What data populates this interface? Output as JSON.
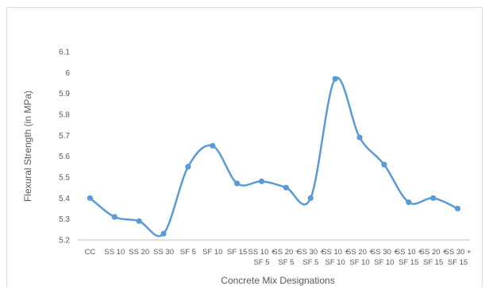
{
  "chart_data": {
    "type": "line",
    "smooth": true,
    "xlabel": "Concrete Mix Designations",
    "ylabel": "Flexural Strength (in MPa)",
    "ylim": [
      5.2,
      6.1
    ],
    "yticks": [
      "5.2",
      "5.3",
      "5.4",
      "5.5",
      "5.6",
      "5.7",
      "5.8",
      "5.9",
      "6",
      "6.1"
    ],
    "grid": false,
    "legend": "none",
    "line_color": "#5b9bd5",
    "categories": [
      [
        "CC"
      ],
      [
        "SS 10"
      ],
      [
        "SS 20"
      ],
      [
        "SS 30"
      ],
      [
        "SF 5"
      ],
      [
        "SF 10"
      ],
      [
        "SF 15"
      ],
      [
        "SS 10 +",
        "SF 5"
      ],
      [
        "SS 20 +",
        "SF 5"
      ],
      [
        "SS 30 +",
        "SF 5"
      ],
      [
        "SS 10 +",
        "SF 10"
      ],
      [
        "SS 20 +",
        "SF 10"
      ],
      [
        "SS 30 +",
        "SF 10"
      ],
      [
        "SS 10 +",
        "SF 15"
      ],
      [
        "SS 20 +",
        "SF 15"
      ],
      [
        "SS 30 +",
        "SF 15"
      ]
    ],
    "values": [
      5.4,
      5.31,
      5.29,
      5.23,
      5.55,
      5.65,
      5.47,
      5.48,
      5.45,
      5.4,
      5.97,
      5.69,
      5.56,
      5.38,
      5.4,
      5.35
    ]
  }
}
